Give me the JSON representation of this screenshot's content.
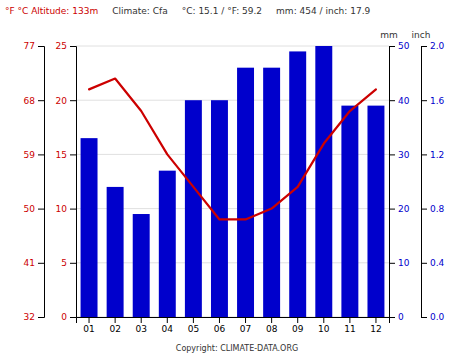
{
  "chart_data": {
    "type": "bar",
    "categories": [
      "01",
      "02",
      "03",
      "04",
      "05",
      "06",
      "07",
      "08",
      "09",
      "10",
      "11",
      "12"
    ],
    "series": [
      {
        "type": "bar",
        "color": "#0000cc",
        "axis": "y2",
        "values": [
          33,
          24,
          19,
          27,
          40,
          40,
          46,
          46,
          49,
          50,
          39,
          39
        ]
      },
      {
        "type": "line",
        "color": "#cc0000",
        "axis": "y",
        "values": [
          21,
          22,
          19,
          15,
          12,
          9,
          9,
          10,
          12,
          16,
          19,
          21
        ]
      }
    ],
    "ylim": [
      0,
      25
    ],
    "yticks": [
      0,
      5,
      10,
      15,
      20,
      25
    ],
    "y2lim": [
      0,
      50
    ],
    "y2ticks": [
      0,
      10,
      20,
      30,
      40,
      50
    ],
    "y3lim": [
      32,
      77
    ],
    "y3ticks": [
      32,
      41,
      50,
      59,
      68,
      77
    ],
    "y4lim": [
      0,
      2.0
    ],
    "y4ticks": [
      {
        "value": 0,
        "label": "0.0"
      },
      0.4,
      0.8,
      1.2,
      1.6,
      {
        "value": 2,
        "label": "2.0"
      }
    ],
    "grid": true,
    "annotations": [
      "°F   °C   Altitude: 133m",
      "Climate: Cfa",
      "°C: 15.1 / °F: 59.2",
      "mm: 454 / inch: 17.9",
      "mm",
      "inch",
      "Copyright: CLIMATE-DATA.ORG"
    ]
  }
}
